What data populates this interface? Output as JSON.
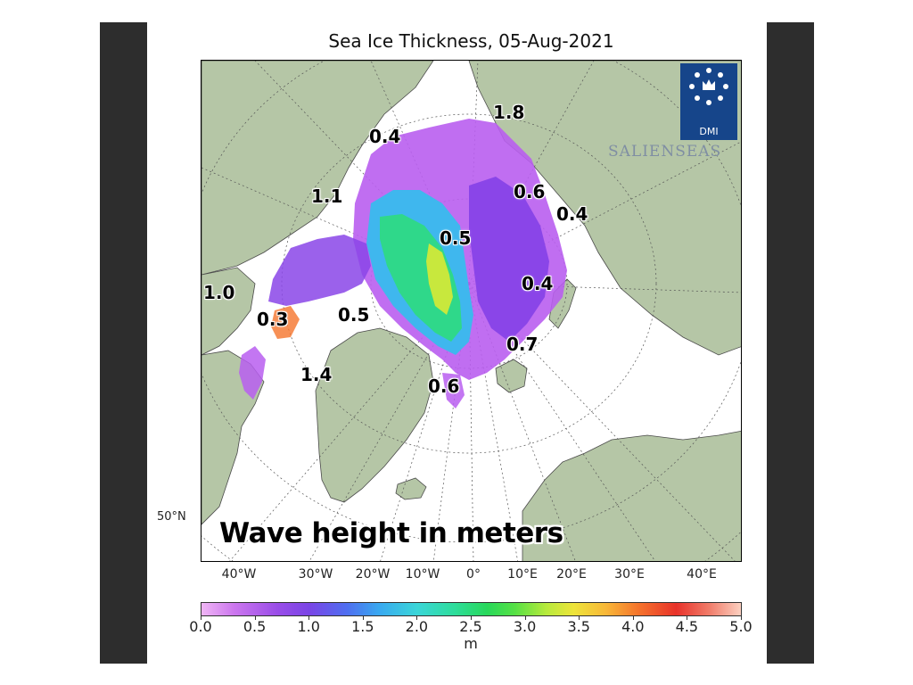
{
  "title": "Sea Ice Thickness, 05-Aug-2021",
  "caption": "Wave height in meters",
  "logo": {
    "text": "DMI",
    "brand": "SALIENSEAS",
    "brand_color": "#7f8ea3",
    "box_color": "#16458a"
  },
  "colors": {
    "land": "#b5c6a6",
    "ice_free": "#ffffff",
    "frame_bar": "#2d2d2d"
  },
  "wave_labels": [
    "1.8",
    "0.4",
    "1.1",
    "0.6",
    "0.4",
    "0.5",
    "0.4",
    "1.0",
    "0.3",
    "0.5",
    "0.7",
    "1.4",
    "0.6"
  ],
  "latitude_labels": [
    "50°N"
  ],
  "longitude_labels": [
    "40°W",
    "30°W",
    "20°W",
    "10°W",
    "0°",
    "10°E",
    "20°E",
    "30°E",
    "40°E"
  ],
  "colorbar": {
    "ticks": [
      "0.0",
      "0.5",
      "1.0",
      "1.5",
      "2.0",
      "2.5",
      "3.0",
      "3.5",
      "4.0",
      "4.5",
      "5.0"
    ],
    "unit": "m",
    "min": 0.0,
    "max": 5.0
  }
}
